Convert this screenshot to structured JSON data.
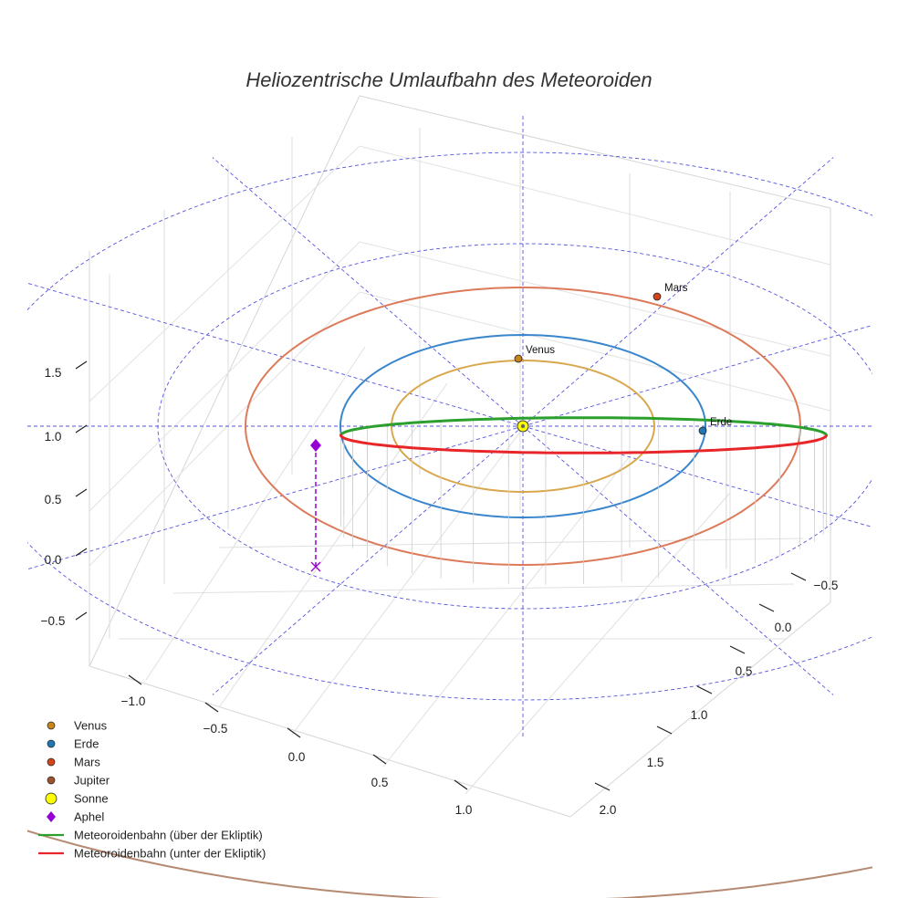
{
  "chart_data": {
    "type": "scatter",
    "projection": "3d",
    "title": "Heliozentrische Umlaufbahn des Meteoroiden",
    "xlabel": "",
    "ylabel": "",
    "zlabel": "",
    "axes": {
      "x_ticks": [
        "−1.0",
        "−0.5",
        "0.0",
        "0.5",
        "1.0"
      ],
      "y_ticks": [
        "−0.5",
        "0.0",
        "0.5",
        "1.0",
        "1.5",
        "2.0"
      ],
      "z_ticks": [
        "−0.5",
        "0.0",
        "0.5",
        "1.0",
        "1.5"
      ]
    },
    "grid": true,
    "legend_position": "bottom-left",
    "planets": [
      {
        "name": "Venus",
        "label": "Venus",
        "orbit_radius_au": 0.72,
        "color": "#c8831a",
        "orbit_color": "#d9a84e"
      },
      {
        "name": "Erde",
        "label": "Erde",
        "orbit_radius_au": 1.0,
        "color": "#1f77b4",
        "orbit_color": "#3a86cc"
      },
      {
        "name": "Mars",
        "label": "Mars",
        "orbit_radius_au": 1.52,
        "color": "#d2451a",
        "orbit_color": "#dd7a5a"
      },
      {
        "name": "Jupiter",
        "label": "",
        "orbit_radius_au": 5.2,
        "color": "#a0522d",
        "orbit_color": "#b58a72"
      }
    ],
    "sun": {
      "name": "Sonne",
      "color": "#ffff00"
    },
    "aphel": {
      "name": "Aphel",
      "color": "#9400d3"
    },
    "meteoroid_orbit": {
      "semi_major_axis_au": 1.33,
      "eccentricity": 0.25,
      "above_label": "Meteoroidenbahn (über der Ekliptik)",
      "below_label": "Meteoroidenbahn (unter der Ekliptik)",
      "above_color": "#2ca02c",
      "below_color": "#e8262a"
    },
    "legend": [
      {
        "label": "Venus",
        "marker": "circle",
        "color": "#c8831a"
      },
      {
        "label": "Erde",
        "marker": "circle",
        "color": "#1f77b4"
      },
      {
        "label": "Mars",
        "marker": "circle",
        "color": "#d2451a"
      },
      {
        "label": "Jupiter",
        "marker": "circle",
        "color": "#a0522d"
      },
      {
        "label": "Sonne",
        "marker": "circle-large",
        "color": "#ffff00"
      },
      {
        "label": "Aphel",
        "marker": "diamond",
        "color": "#9400d3"
      },
      {
        "label": "Meteoroidenbahn (über der Ekliptik)",
        "marker": "line",
        "color": "#2ca02c"
      },
      {
        "label": "Meteoroidenbahn (unter der Ekliptik)",
        "marker": "line",
        "color": "#e8262a"
      }
    ]
  }
}
